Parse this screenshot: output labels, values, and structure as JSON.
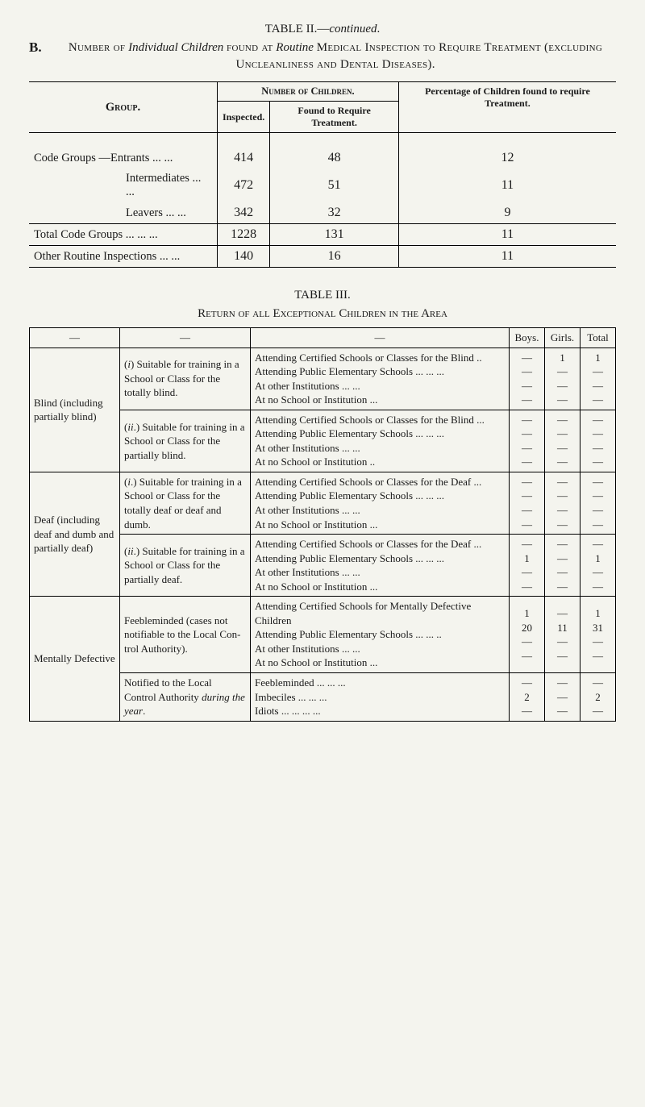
{
  "tableII": {
    "title_html": "TABLE II.—<span class='italic'>continued</span>.",
    "section_letter": "B.",
    "section_desc_html": "<span class='smallcaps'>Number of</span> <span class='italic'>Individual Children</span> <span class='smallcaps'>found at</span> <span class='italic'>Routine</span> <span class='smallcaps'>Medical Inspection to Require Treatment (excluding Unclean­liness and Dental Diseases)</span>.",
    "head_group": "Group.",
    "head_number": "Number of Children.",
    "head_inspected": "Inspected.",
    "head_found": "Found to Require Treatment.",
    "head_pct": "Percentage of Children found to require Treatment.",
    "rows": [
      {
        "label": "Code Groups —Entrants   ...   ...",
        "inspected": "414",
        "found": "48",
        "pct": "12"
      },
      {
        "label": "Intermediates ...   ...",
        "indent": true,
        "inspected": "472",
        "found": "51",
        "pct": "11"
      },
      {
        "label": "Leavers   ...   ...",
        "indent": true,
        "inspected": "342",
        "found": "32",
        "pct": "9"
      }
    ],
    "total": {
      "label": "Total Code Groups   ...   ...   ...",
      "inspected": "1228",
      "found": "131",
      "pct": "11"
    },
    "other": {
      "label": "Other Routine Inspections   ...   ...",
      "inspected": "140",
      "found": "16",
      "pct": "11"
    }
  },
  "tableIII": {
    "title": "TABLE III.",
    "subtitle": "Return of all Exceptional Children in the Area",
    "head": {
      "c1": "—",
      "c2": "—",
      "c3": "—",
      "boys": "Boys.",
      "girls": "Girls.",
      "total": "Total"
    },
    "blocks": [
      {
        "category": "Blind (including partially blind)",
        "cat_rowspan": 2,
        "subs": [
          {
            "label_html": "(<span class='it'>i</span>) Suitable for train­ing in a School or Class for the totally blind.",
            "lines": [
              "Attending Certified Schools or Classes for the Blind   ..",
              "Attending Public Elementary Schools   ...   ...   ...",
              "At other Institutions ...   ...",
              "At no School or Institution ..."
            ],
            "boys": [
              "—",
              "—",
              "—",
              "—"
            ],
            "girls": [
              "1",
              "—",
              "—",
              "—"
            ],
            "total": [
              "1",
              "—",
              "—",
              "—"
            ]
          },
          {
            "label_html": "(<span class='it'>ii</span>.) Suitable for train­ing in a School or Class for the partially blind.",
            "lines": [
              "Attending Certified Schools or Classes for the Blind   ...",
              "Attending Public Elementary Schools   ...   ...   ...",
              "At other Institutions ...   ...",
              "At no School or Institution   .."
            ],
            "boys": [
              "—",
              "—",
              "—",
              "—"
            ],
            "girls": [
              "—",
              "—",
              "—",
              "—"
            ],
            "total": [
              "—",
              "—",
              "—",
              "—"
            ]
          }
        ]
      },
      {
        "category": "Deaf (including deaf and dumb and partially deaf)",
        "cat_rowspan": 2,
        "subs": [
          {
            "label_html": "(<span class='it'>i</span>.) Suitable for train­ing in a School or Class for the totally deaf or deaf and dumb.",
            "lines": [
              "Attending Certified Schools or Classes for the Deaf   ...",
              "Attending Public Elementary Schools   ...   ...   ...",
              "At other Institutions ...   ...",
              "At no School or Institution ..."
            ],
            "boys": [
              "—",
              "—",
              "—",
              "—"
            ],
            "girls": [
              "—",
              "—",
              "—",
              "—"
            ],
            "total": [
              "—",
              "—",
              "—",
              "—"
            ]
          },
          {
            "label_html": "(<span class='it'>ii</span>.) Suitable for train­ing in a School or Class for the partially deaf.",
            "lines": [
              "Attending Certified Schools or Classes for the Deaf   ...",
              "Attending Public Elementary Schools   ...   ...   ...",
              "At other Institutions ...   ...",
              "At no School or Institution ..."
            ],
            "boys": [
              "—",
              "1",
              "—",
              "—"
            ],
            "girls": [
              "—",
              "—",
              "—",
              "—"
            ],
            "total": [
              "—",
              "1",
              "—",
              "—"
            ]
          }
        ]
      },
      {
        "category": "Mentally Defective",
        "cat_rowspan": 2,
        "subs": [
          {
            "label_html": "Feebleminded (cases not notifiable to the Local Con­trol Authority).",
            "lines": [
              "Attending Certified Schools for Mentally Defective Children",
              "Attending Public Elementary Schools   ...   ...   ..",
              "At other Institutions ...   ...",
              "At no School or Institution ..."
            ],
            "boys": [
              "1",
              "20",
              "—",
              "—"
            ],
            "girls": [
              "—",
              "11",
              "—",
              "—"
            ],
            "total": [
              "1",
              "31",
              "—",
              "—"
            ]
          },
          {
            "label_html": "Notified to the Local Control Authority <span class='it'>during the year</span>.",
            "lines": [
              "Feebleminded ...   ...   ...",
              "Imbeciles   ...   ...   ...",
              "Idiots   ...   ...   ...   ..."
            ],
            "boys": [
              "—",
              "2",
              "—"
            ],
            "girls": [
              "—",
              "—",
              "—"
            ],
            "total": [
              "—",
              "2",
              "—"
            ]
          }
        ]
      }
    ]
  }
}
